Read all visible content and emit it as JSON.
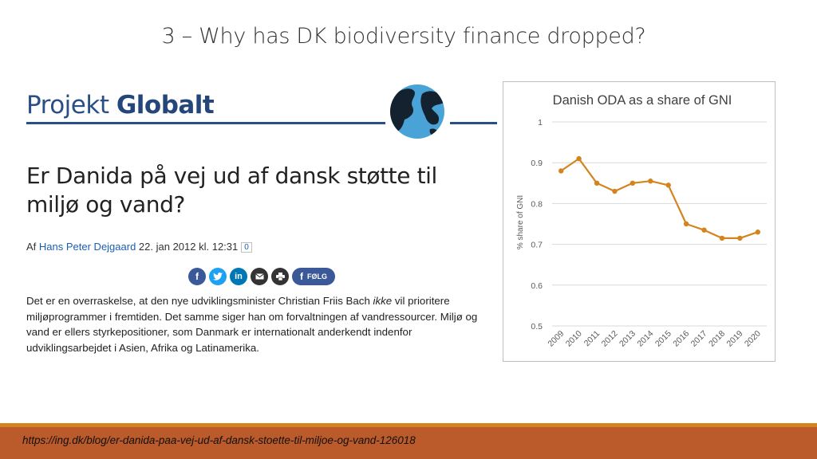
{
  "slide": {
    "title": "3 – Why has DK biodiversity finance dropped?"
  },
  "article": {
    "brand_light": "Projekt ",
    "brand_bold": "Globalt",
    "headline": "Er Danida på vej ud af dansk støtte til miljø og vand?",
    "byline_prefix": "Af ",
    "author": "Hans Peter Dejgaard",
    "date": " 22. jan 2012 kl. 12:31",
    "comment_count": "0",
    "share_icons": [
      "facebook-icon",
      "twitter-icon",
      "linkedin-icon",
      "email-icon",
      "print-icon"
    ],
    "follow_label": "FØLG",
    "body_before_italic": "Det er en overraskelse, at den nye udviklingsminister Christian Friis Bach ",
    "body_italic": "ikke",
    "body_after_italic": " vil prioritere miljøprogrammer i fremtiden. Det samme siger han om forvaltningen af vandressourcer. Miljø og vand er ellers styrkepositioner, som Danmark er internationalt anderkendt indenfor udviklingsarbejdet i Asien, Afrika og Latinamerika."
  },
  "chart_data": {
    "type": "line",
    "title": "Danish ODA as a share of GNI",
    "xlabel": "",
    "ylabel": "% share of GNI",
    "categories": [
      "2009",
      "2010",
      "2011",
      "2012",
      "2013",
      "2014",
      "2015",
      "2016",
      "2017",
      "2018",
      "2019",
      "2020"
    ],
    "series": [
      {
        "values": [
          0.88,
          0.91,
          0.85,
          0.83,
          0.85,
          0.855,
          0.845,
          0.75,
          0.735,
          0.715,
          0.715,
          0.73
        ]
      }
    ],
    "ylim": [
      0.5,
      1
    ],
    "yticks": [
      "0.5",
      "0.6",
      "0.7",
      "0.8",
      "0.9",
      "1"
    ],
    "grid": true,
    "legend": "none",
    "colors": {
      "line": "#d4841f",
      "grid": "#d9d9d9"
    }
  },
  "footer": {
    "url": "https://ing.dk/blog/er-danida-paa-vej-ud-af-dansk-stoette-til-miljoe-og-vand-126018"
  }
}
